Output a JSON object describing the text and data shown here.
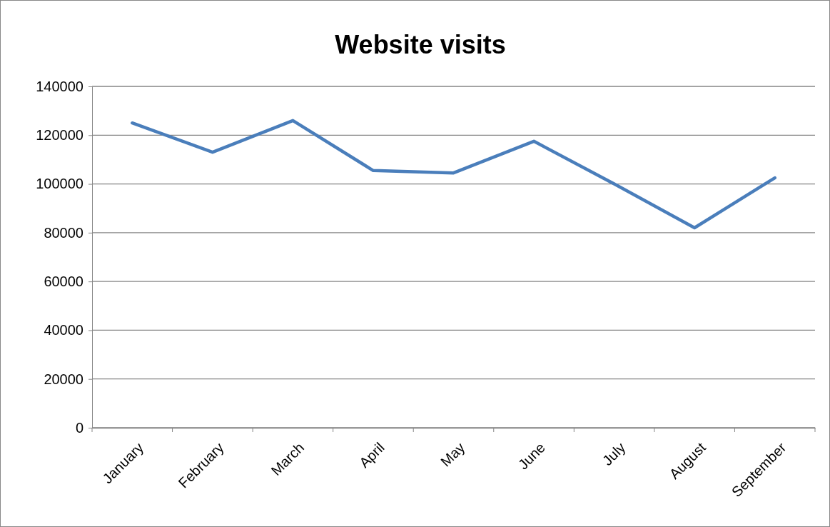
{
  "chart_data": {
    "type": "line",
    "title": "Website visits",
    "categories": [
      "January",
      "February",
      "March",
      "April",
      "May",
      "June",
      "July",
      "August",
      "September"
    ],
    "series": [
      {
        "color": "#4a7ebb",
        "values": [
          125000,
          113000,
          126000,
          105500,
          104500,
          117500,
          100000,
          82000,
          102500
        ]
      }
    ],
    "ylim": [
      0,
      140000
    ],
    "yticks": [
      0,
      20000,
      40000,
      60000,
      80000,
      100000,
      120000,
      140000
    ],
    "grid": "y",
    "legend": false,
    "marker": "none",
    "line_style": "solid"
  }
}
